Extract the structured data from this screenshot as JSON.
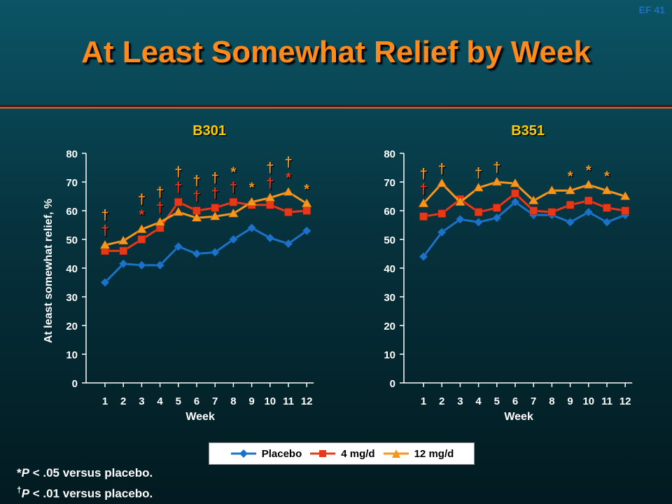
{
  "slide_id": "EF 41",
  "title": "At Least Somewhat Relief by Week",
  "colors": {
    "placebo": "#1b72c9",
    "mg4": "#e83818",
    "mg12": "#f6961c",
    "axis": "#ffffff",
    "title": "#ff8a1c"
  },
  "legend": {
    "placebo": "Placebo",
    "mg4": "4 mg/d",
    "mg12": "12 mg/d"
  },
  "footnotes": {
    "star_symbol": "*",
    "star_italic": "P",
    "star_text": " < .05 versus placebo.",
    "dagger_symbol": "†",
    "dagger_italic": "P",
    "dagger_text": " < .01 versus placebo."
  },
  "chart_data": [
    {
      "type": "line",
      "title": "B301",
      "xlabel": "Week",
      "ylabel": "At least somewhat relief, %",
      "ylim": [
        0,
        80
      ],
      "yticks": [
        0,
        10,
        20,
        30,
        40,
        50,
        60,
        70,
        80
      ],
      "x": [
        1,
        2,
        3,
        4,
        5,
        6,
        7,
        8,
        9,
        10,
        11,
        12
      ],
      "series": [
        {
          "name": "Placebo",
          "values": [
            35,
            41.5,
            41,
            41,
            47.5,
            45,
            45.5,
            50,
            54,
            50.5,
            48.5,
            53
          ]
        },
        {
          "name": "4 mg/d",
          "values": [
            46,
            46,
            50,
            54,
            63,
            60,
            61,
            63,
            62,
            62,
            59.5,
            60
          ]
        },
        {
          "name": "12 mg/d",
          "values": [
            48,
            49.5,
            53.5,
            56,
            59.5,
            57.5,
            58,
            59,
            63,
            64.5,
            66.5,
            62.5
          ]
        }
      ],
      "annotations": [
        {
          "week": 1,
          "mg12": "†",
          "mg4": "†"
        },
        {
          "week": 3,
          "mg12": "†",
          "mg4": "*"
        },
        {
          "week": 4,
          "mg12": "†",
          "mg4": "†"
        },
        {
          "week": 5,
          "mg12": "†",
          "mg4": "†"
        },
        {
          "week": 6,
          "mg12": "†",
          "mg4": "†"
        },
        {
          "week": 7,
          "mg12": "†",
          "mg4": "†"
        },
        {
          "week": 8,
          "mg12": "*",
          "mg4": "†"
        },
        {
          "week": 9,
          "mg12": "*",
          "mg4": ""
        },
        {
          "week": 10,
          "mg12": "†",
          "mg4": "†"
        },
        {
          "week": 11,
          "mg12": "†",
          "mg4": "*"
        },
        {
          "week": 12,
          "mg12": "*",
          "mg4": ""
        }
      ]
    },
    {
      "type": "line",
      "title": "B351",
      "xlabel": "Week",
      "ylabel": "",
      "ylim": [
        0,
        80
      ],
      "yticks": [
        0,
        10,
        20,
        30,
        40,
        50,
        60,
        70,
        80
      ],
      "x": [
        1,
        2,
        3,
        4,
        5,
        6,
        7,
        8,
        9,
        10,
        11,
        12
      ],
      "series": [
        {
          "name": "Placebo",
          "values": [
            44,
            52.5,
            57,
            56,
            57.5,
            63,
            58.5,
            58.5,
            56,
            59.5,
            56,
            58.5
          ]
        },
        {
          "name": "4 mg/d",
          "values": [
            58,
            59,
            64,
            59.5,
            61,
            66,
            60,
            59.5,
            62,
            63.5,
            61,
            60
          ]
        },
        {
          "name": "12 mg/d",
          "values": [
            62.5,
            69.5,
            63,
            68,
            70,
            69.5,
            63.5,
            67,
            67,
            69,
            67,
            65
          ]
        }
      ],
      "annotations": [
        {
          "week": 1,
          "mg12": "†",
          "mg4": "†"
        },
        {
          "week": 2,
          "mg12": "†",
          "mg4": ""
        },
        {
          "week": 4,
          "mg12": "†",
          "mg4": ""
        },
        {
          "week": 5,
          "mg12": "†",
          "mg4": ""
        },
        {
          "week": 9,
          "mg12": "*",
          "mg4": ""
        },
        {
          "week": 10,
          "mg12": "*",
          "mg4": ""
        },
        {
          "week": 11,
          "mg12": "*",
          "mg4": ""
        }
      ]
    }
  ]
}
